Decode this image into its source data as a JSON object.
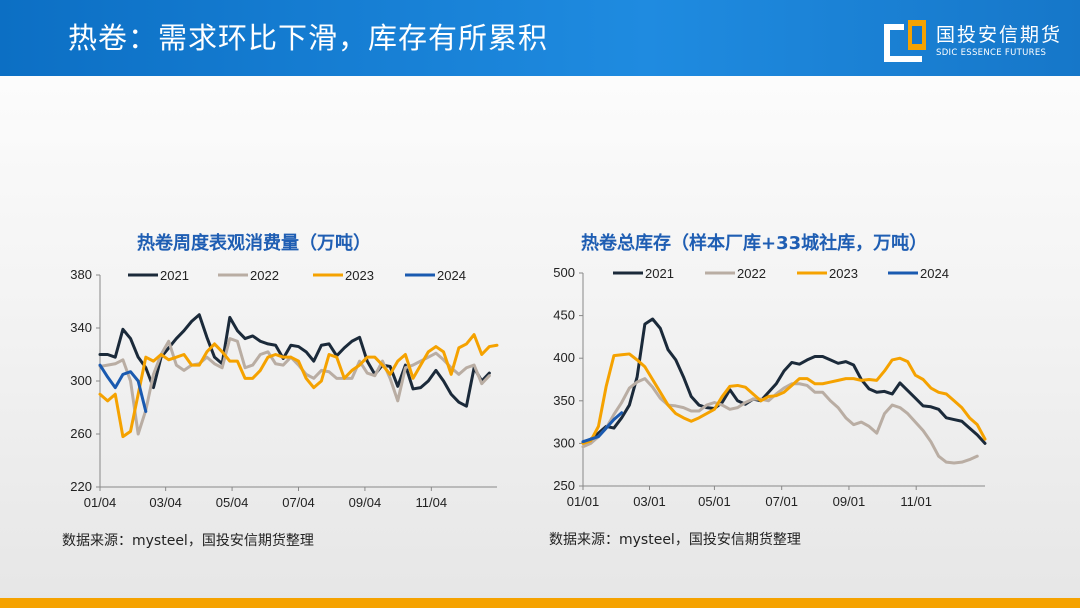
{
  "header": {
    "title": "热卷：需求环比下滑，库存有所累积",
    "logo_cn": "国投安信期货",
    "logo_en": "SDIC ESSENCE FUTURES"
  },
  "colors": {
    "header_blue": "#1677c9",
    "bottom_bar": "#f5a200",
    "title_blue": "#1f5eb3"
  },
  "chart_data": [
    {
      "type": "line",
      "title": "热卷周度表观消费量（万吨）",
      "source": "数据来源：mysteel，国投安信期货整理",
      "ylim": [
        220,
        380
      ],
      "yticks": [
        220,
        260,
        300,
        340,
        380
      ],
      "xlim": [
        0,
        52
      ],
      "xticks": [
        {
          "x": 0,
          "label": "01/04"
        },
        {
          "x": 8.6,
          "label": "03/04"
        },
        {
          "x": 17.3,
          "label": "05/04"
        },
        {
          "x": 26,
          "label": "07/04"
        },
        {
          "x": 34.7,
          "label": "09/04"
        },
        {
          "x": 43.4,
          "label": "11/04"
        }
      ],
      "grid": false,
      "legend": "top",
      "series": [
        {
          "name": "2021",
          "color": "#1b2a3a",
          "values": [
            320,
            320,
            318,
            339,
            332,
            318,
            310,
            295,
            318,
            325,
            332,
            338,
            345,
            350,
            333,
            318,
            313,
            348,
            338,
            332,
            334,
            330,
            328,
            327,
            317,
            327,
            326,
            322,
            315,
            327,
            328,
            319,
            325,
            330,
            333,
            315,
            305,
            312,
            311,
            296,
            312,
            294,
            295,
            300,
            308,
            300,
            290,
            284,
            281,
            310,
            300,
            306
          ]
        },
        {
          "name": "2022",
          "color": "#b9ada3",
          "values": [
            311,
            312,
            313,
            316,
            300,
            260,
            278,
            305,
            320,
            330,
            312,
            308,
            312,
            313,
            318,
            313,
            310,
            332,
            330,
            310,
            312,
            320,
            322,
            313,
            312,
            318,
            312,
            305,
            302,
            308,
            307,
            302,
            302,
            302,
            315,
            306,
            304,
            315,
            302,
            285,
            310,
            312,
            315,
            318,
            321,
            316,
            310,
            305,
            310,
            312,
            298,
            304
          ]
        },
        {
          "name": "2023",
          "color": "#f5a200",
          "values": [
            290,
            285,
            290,
            258,
            262,
            290,
            318,
            315,
            320,
            316,
            318,
            320,
            312,
            312,
            322,
            328,
            322,
            315,
            315,
            302,
            302,
            308,
            318,
            320,
            318,
            318,
            315,
            302,
            295,
            300,
            320,
            318,
            302,
            308,
            312,
            318,
            318,
            312,
            305,
            315,
            320,
            302,
            312,
            322,
            326,
            322,
            305,
            325,
            328,
            335,
            320,
            326,
            327
          ]
        },
        {
          "name": "2024",
          "color": "#1a5ab0",
          "values": [
            312,
            303,
            295,
            305,
            307,
            300,
            277
          ]
        }
      ]
    },
    {
      "type": "line",
      "title": "热卷总库存（样本厂库+33城社库，万吨）",
      "source": "数据来源：mysteel，国投安信期货整理",
      "ylim": [
        250,
        500
      ],
      "yticks": [
        250,
        300,
        350,
        400,
        450,
        500
      ],
      "xlim": [
        0,
        52
      ],
      "xticks": [
        {
          "x": 0,
          "label": "01/01"
        },
        {
          "x": 8.6,
          "label": "03/01"
        },
        {
          "x": 17,
          "label": "05/01"
        },
        {
          "x": 25.7,
          "label": "07/01"
        },
        {
          "x": 34.4,
          "label": "09/01"
        },
        {
          "x": 43.1,
          "label": "11/01"
        }
      ],
      "grid": false,
      "legend": "top",
      "series": [
        {
          "name": "2021",
          "color": "#1b2a3a",
          "values": [
            301,
            305,
            312,
            320,
            318,
            330,
            345,
            378,
            440,
            446,
            435,
            410,
            398,
            378,
            355,
            345,
            342,
            341,
            348,
            363,
            350,
            346,
            352,
            350,
            360,
            370,
            385,
            395,
            393,
            398,
            402,
            402,
            398,
            394,
            396,
            392,
            375,
            364,
            360,
            361,
            358,
            371,
            362,
            353,
            344,
            343,
            340,
            330,
            328,
            326,
            318,
            310,
            300
          ]
        },
        {
          "name": "2022",
          "color": "#b9ada3",
          "values": [
            296,
            300,
            308,
            318,
            334,
            348,
            365,
            372,
            376,
            366,
            353,
            345,
            344,
            342,
            338,
            338,
            345,
            348,
            345,
            340,
            342,
            348,
            352,
            352,
            350,
            358,
            365,
            370,
            370,
            368,
            360,
            360,
            350,
            342,
            330,
            322,
            325,
            320,
            312,
            335,
            345,
            342,
            335,
            325,
            315,
            302,
            285,
            278,
            277,
            278,
            281,
            285
          ]
        },
        {
          "name": "2023",
          "color": "#f5a200",
          "values": [
            300,
            303,
            320,
            367,
            403,
            404,
            405,
            398,
            390,
            375,
            360,
            345,
            335,
            330,
            326,
            330,
            335,
            340,
            355,
            367,
            368,
            366,
            358,
            350,
            355,
            356,
            360,
            368,
            376,
            376,
            370,
            370,
            372,
            374,
            376,
            376,
            374,
            375,
            374,
            385,
            398,
            400,
            396,
            380,
            375,
            365,
            360,
            358,
            350,
            342,
            330,
            322,
            305
          ]
        },
        {
          "name": "2024",
          "color": "#1a5ab0",
          "values": [
            302,
            305,
            308,
            318,
            328,
            336
          ]
        }
      ]
    }
  ]
}
